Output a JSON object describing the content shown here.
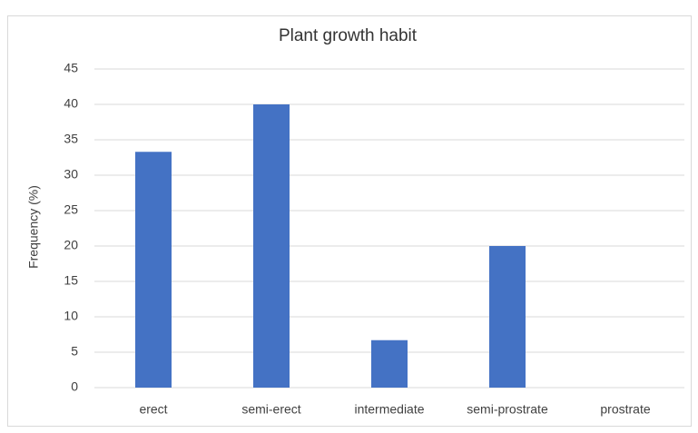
{
  "chart_data": {
    "type": "bar",
    "title": "Plant growth habit",
    "y_label": "Frequency (%)",
    "categories": [
      "erect",
      "semi-erect",
      "intermediate",
      "semi-prostrate",
      "prostrate"
    ],
    "values": [
      33.3,
      40,
      6.7,
      20,
      0
    ],
    "color": "#4472c4",
    "ylim": [
      0,
      45
    ],
    "yticks": [
      0,
      5,
      10,
      15,
      20,
      25,
      30,
      35,
      40,
      45
    ],
    "grid": true
  }
}
